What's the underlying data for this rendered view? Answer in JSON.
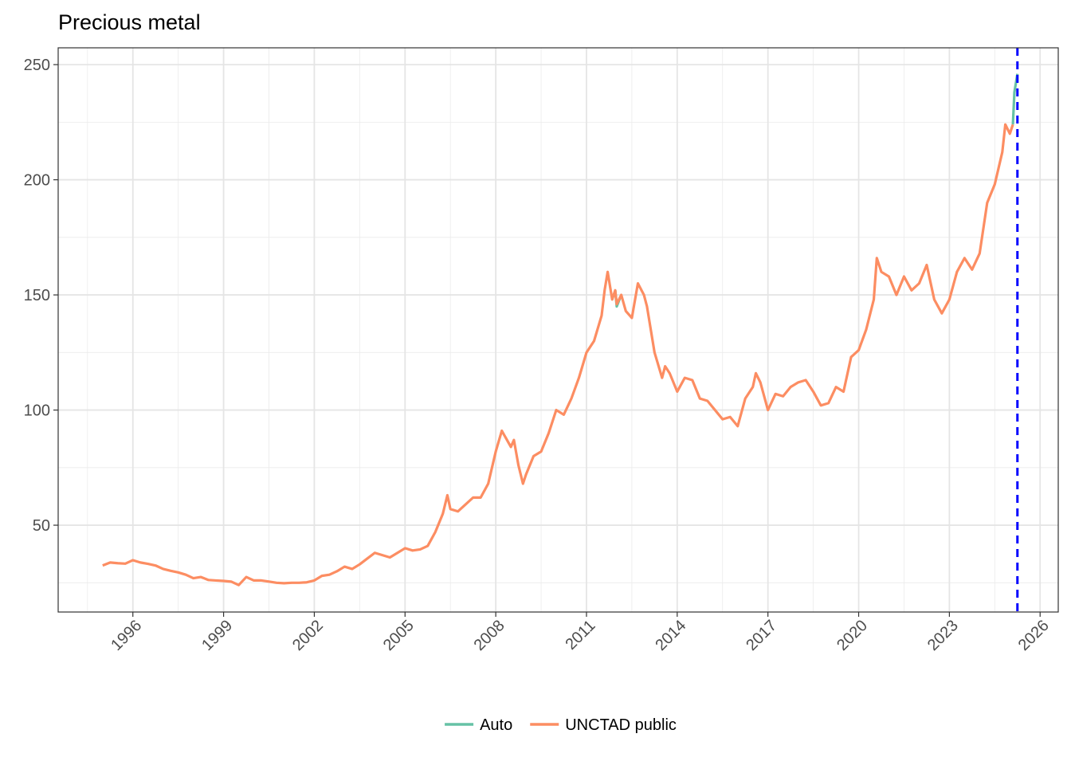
{
  "chart_data": {
    "type": "line",
    "title": "Precious metal",
    "x": [
      1995.0,
      1995.25,
      1995.5,
      1995.75,
      1996.0,
      1996.25,
      1996.5,
      1996.75,
      1997.0,
      1997.25,
      1997.5,
      1997.75,
      1998.0,
      1998.25,
      1998.5,
      1998.75,
      1999.0,
      1999.25,
      1999.5,
      1999.75,
      2000.0,
      2000.25,
      2000.5,
      2000.75,
      2001.0,
      2001.25,
      2001.5,
      2001.75,
      2002.0,
      2002.25,
      2002.5,
      2002.75,
      2003.0,
      2003.25,
      2003.5,
      2003.75,
      2004.0,
      2004.25,
      2004.5,
      2004.75,
      2005.0,
      2005.25,
      2005.5,
      2005.75,
      2006.0,
      2006.25,
      2006.4,
      2006.5,
      2006.75,
      2007.0,
      2007.25,
      2007.5,
      2007.75,
      2008.0,
      2008.2,
      2008.5,
      2008.6,
      2008.75,
      2008.9,
      2009.0,
      2009.25,
      2009.5,
      2009.75,
      2010.0,
      2010.25,
      2010.5,
      2010.75,
      2011.0,
      2011.25,
      2011.5,
      2011.6,
      2011.7,
      2011.85,
      2011.95,
      2012.0,
      2012.15,
      2012.3,
      2012.5,
      2012.7,
      2012.9,
      2013.0,
      2013.25,
      2013.5,
      2013.6,
      2013.75,
      2014.0,
      2014.25,
      2014.5,
      2014.75,
      2015.0,
      2015.25,
      2015.5,
      2015.75,
      2016.0,
      2016.25,
      2016.5,
      2016.6,
      2016.75,
      2017.0,
      2017.25,
      2017.5,
      2017.75,
      2018.0,
      2018.25,
      2018.5,
      2018.75,
      2019.0,
      2019.25,
      2019.5,
      2019.75,
      2020.0,
      2020.25,
      2020.5,
      2020.6,
      2020.75,
      2021.0,
      2021.25,
      2021.5,
      2021.75,
      2022.0,
      2022.25,
      2022.5,
      2022.75,
      2023.0,
      2023.25,
      2023.5,
      2023.75,
      2024.0,
      2024.25,
      2024.5,
      2024.75,
      2024.85,
      2025.0,
      2025.1,
      2025.15,
      2025.25
    ],
    "series": [
      {
        "name": "Auto",
        "color": "#66c2a5",
        "values": [
          null,
          null,
          null,
          null,
          null,
          null,
          null,
          null,
          null,
          null,
          null,
          null,
          null,
          null,
          null,
          null,
          null,
          null,
          null,
          null,
          null,
          null,
          null,
          null,
          null,
          null,
          null,
          null,
          null,
          null,
          null,
          null,
          null,
          null,
          null,
          null,
          null,
          null,
          null,
          null,
          null,
          null,
          null,
          null,
          null,
          null,
          null,
          null,
          null,
          null,
          null,
          null,
          null,
          null,
          null,
          null,
          null,
          null,
          null,
          null,
          null,
          null,
          null,
          null,
          null,
          null,
          null,
          null,
          null,
          null,
          null,
          null,
          null,
          152,
          145,
          150,
          null,
          null,
          null,
          null,
          null,
          null,
          null,
          null,
          null,
          null,
          null,
          null,
          null,
          null,
          null,
          null,
          null,
          null,
          null,
          null,
          null,
          null,
          null,
          null,
          null,
          null,
          null,
          null,
          null,
          null,
          null,
          null,
          null,
          null,
          null,
          null,
          null,
          null,
          null,
          null,
          null,
          null,
          null,
          null,
          null,
          null,
          null,
          null,
          null,
          null,
          null,
          null,
          null,
          null,
          null,
          null,
          null,
          224,
          238,
          246
        ]
      },
      {
        "name": "UNCTAD public",
        "color": "#fc8d62",
        "values": [
          32.5,
          33.8,
          33.5,
          33.3,
          34.8,
          33.8,
          33.2,
          32.5,
          31,
          30.2,
          29.5,
          28.5,
          27,
          27.5,
          26.2,
          26,
          25.8,
          25.5,
          24,
          27.5,
          26,
          26,
          25.5,
          25,
          24.8,
          25,
          25,
          25.2,
          26,
          28,
          28.5,
          30,
          32,
          31,
          33,
          35.5,
          38,
          37,
          36,
          38,
          40,
          39,
          39.5,
          41,
          47,
          55,
          63,
          57,
          56,
          59,
          62,
          62,
          68,
          82,
          91,
          84,
          87,
          76,
          68,
          72,
          80,
          82,
          90,
          100,
          98,
          105,
          114,
          125,
          130,
          141,
          152,
          160,
          148,
          152,
          146,
          150,
          143,
          140,
          155,
          150,
          145,
          125,
          114,
          119,
          116,
          108,
          114,
          113,
          105,
          104,
          100,
          96,
          97,
          93,
          105,
          110,
          116,
          112,
          100,
          107,
          106,
          110,
          112,
          113,
          108,
          102,
          103,
          110,
          108,
          123,
          126,
          135,
          148,
          166,
          160,
          158,
          150,
          158,
          152,
          155,
          163,
          148,
          142,
          148,
          160,
          166,
          161,
          168,
          190,
          198,
          212,
          224,
          220,
          224,
          null,
          null
        ]
      }
    ],
    "xlim": [
      1993.53,
      2026.6
    ],
    "xticks": [
      1996,
      1999,
      2002,
      2005,
      2008,
      2011,
      2014,
      2017,
      2020,
      2023,
      2026
    ],
    "ylim": [
      12.3,
      257.3
    ],
    "yticks": [
      50,
      100,
      150,
      200,
      250
    ],
    "grid": true,
    "legend": "bottom",
    "vline": {
      "x": 2025.25,
      "color": "#0000ff"
    }
  }
}
